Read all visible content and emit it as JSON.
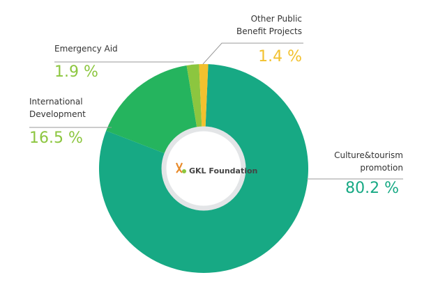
{
  "chart_data": {
    "type": "donut",
    "categories": [
      "Culture&tourism\npromotion",
      "International\nDevelopment",
      "Emergency Aid",
      "Other Public\nBenefit Projects"
    ],
    "values": [
      80.2,
      16.5,
      1.9,
      1.4
    ],
    "value_labels": [
      "80.2 %",
      "16.5 %",
      "1.9 %",
      "1.4 %"
    ],
    "colors": [
      "#17a984",
      "#25b45e",
      "#8cc63f",
      "#f2c12e"
    ],
    "value_label_colors": [
      "#17a984",
      "#8cc63f",
      "#8cc63f",
      "#f2c12e"
    ],
    "center_label": "GKL Foundation"
  }
}
